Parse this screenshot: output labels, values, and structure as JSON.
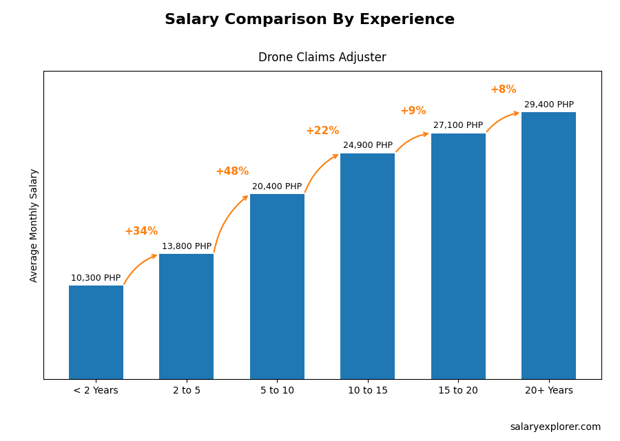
{
  "chart_data": {
    "type": "bar",
    "title": "Salary Comparison By Experience",
    "subtitle": "Drone Claims Adjuster",
    "ylabel": "Average Monthly Salary",
    "categories": [
      "< 2 Years",
      "2 to 5",
      "5 to 10",
      "10 to 15",
      "15 to 20",
      "20+ Years"
    ],
    "values": [
      10300,
      13800,
      20400,
      24900,
      27100,
      29400
    ],
    "value_labels": [
      "10,300 PHP",
      "13,800 PHP",
      "20,400 PHP",
      "24,900 PHP",
      "27,100 PHP",
      "29,400 PHP"
    ],
    "data_labels": true,
    "annotations": [
      "+34%",
      "+48%",
      "+22%",
      "+9%",
      "+8%"
    ],
    "footnote": "salaryexplorer.com",
    "ylim": [
      0,
      34000
    ],
    "tick_labels": "x",
    "grid": false
  }
}
